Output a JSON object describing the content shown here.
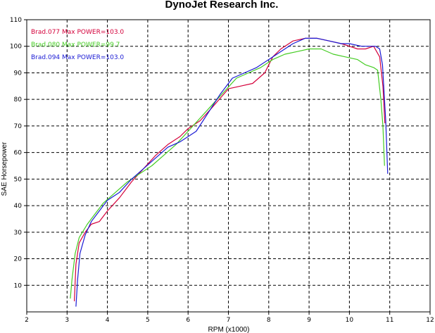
{
  "chart_data": {
    "type": "line",
    "title": "DynoJet Research Inc.",
    "xlabel": "RPM (x1000)",
    "ylabel": "SAE Horsepower",
    "xlim": [
      2,
      12
    ],
    "ylim": [
      0,
      110
    ],
    "xticks": [
      2,
      3,
      4,
      5,
      6,
      7,
      8,
      9,
      10,
      11,
      12
    ],
    "yticks": [
      10,
      20,
      30,
      40,
      50,
      60,
      70,
      80,
      90,
      100,
      110
    ],
    "grid": true,
    "legend_position": "top-left",
    "series": [
      {
        "name": "Brad.077  Max POWER=103.0",
        "color": "#d4003a",
        "x": [
          3.18,
          3.22,
          3.3,
          3.45,
          3.6,
          3.8,
          4.0,
          4.3,
          4.6,
          4.9,
          5.2,
          5.5,
          5.8,
          6.0,
          6.3,
          6.6,
          7.0,
          7.3,
          7.6,
          7.9,
          8.1,
          8.3,
          8.6,
          8.9,
          9.2,
          9.5,
          9.8,
          10.0,
          10.2,
          10.4,
          10.6,
          10.75,
          10.83,
          10.88
        ],
        "y": [
          4,
          18,
          26,
          30,
          33,
          34,
          38,
          43,
          49,
          54,
          59,
          63,
          66,
          69,
          72,
          77,
          84,
          85,
          86,
          90,
          96,
          99,
          102,
          103,
          103,
          102,
          101,
          100,
          99,
          99,
          100,
          96,
          85,
          71
        ]
      },
      {
        "name": "Brad.080  Max POWER=99.7",
        "color": "#44cc22",
        "x": [
          3.08,
          3.12,
          3.2,
          3.3,
          3.5,
          3.7,
          3.9,
          4.2,
          4.5,
          4.8,
          5.1,
          5.4,
          5.7,
          6.0,
          6.3,
          6.6,
          6.9,
          7.2,
          7.5,
          7.8,
          8.1,
          8.4,
          8.7,
          9.0,
          9.3,
          9.6,
          9.9,
          10.2,
          10.4,
          10.6,
          10.7,
          10.78,
          10.83,
          10.87
        ],
        "y": [
          5,
          12,
          22,
          28,
          33,
          37,
          41,
          45,
          49,
          52,
          55,
          59,
          63,
          68,
          73,
          78,
          83,
          88,
          90,
          92,
          95,
          97,
          98,
          99,
          99,
          97,
          96,
          95,
          93,
          92,
          91,
          80,
          70,
          55
        ]
      },
      {
        "name": "Brad.094  Max POWER=103.0",
        "color": "#1a1ad4",
        "x": [
          3.22,
          3.26,
          3.32,
          3.45,
          3.6,
          3.8,
          4.0,
          4.3,
          4.6,
          4.9,
          5.2,
          5.5,
          5.8,
          6.0,
          6.2,
          6.5,
          6.8,
          7.1,
          7.4,
          7.7,
          8.0,
          8.3,
          8.6,
          8.9,
          9.2,
          9.5,
          9.8,
          10.0,
          10.3,
          10.5,
          10.65,
          10.75,
          10.82,
          10.9,
          10.95
        ],
        "y": [
          2,
          12,
          22,
          29,
          34,
          38,
          42,
          45,
          50,
          54,
          58,
          62,
          64,
          66,
          68,
          75,
          82,
          88,
          90,
          92,
          95,
          98,
          101,
          103,
          103,
          102,
          101,
          101,
          100,
          100,
          100,
          99,
          93,
          72,
          52
        ]
      }
    ]
  }
}
